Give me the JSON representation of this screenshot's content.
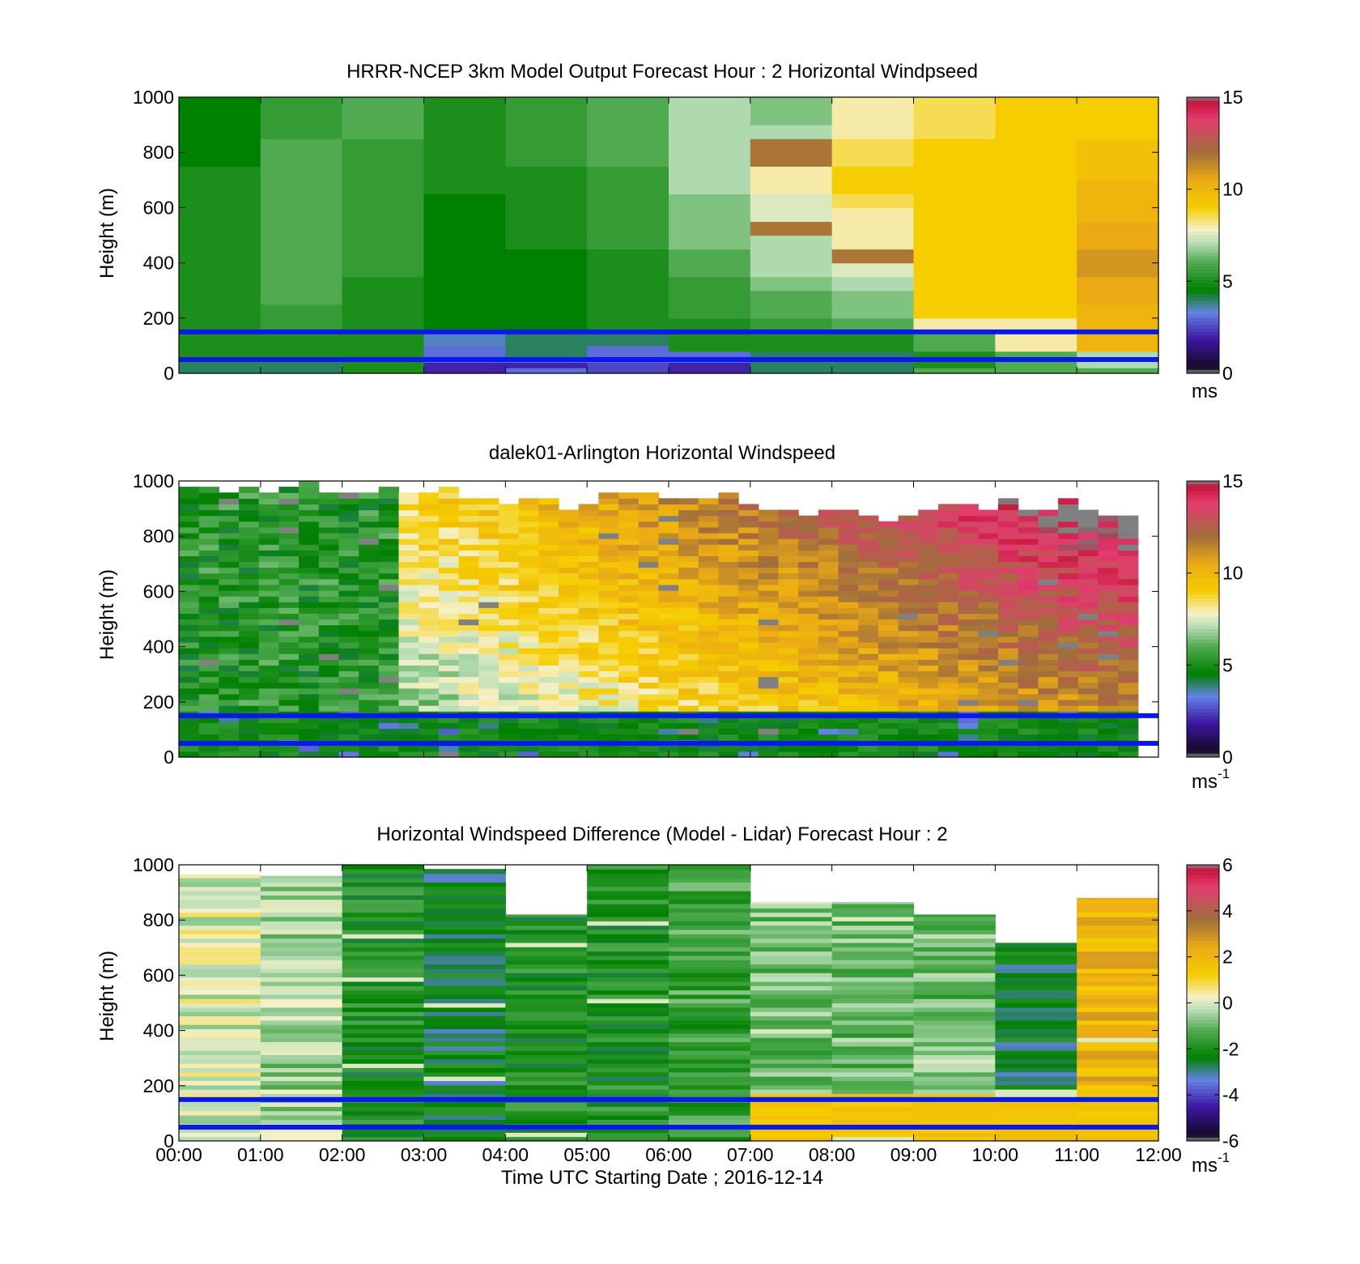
{
  "figure": {
    "xlabel": "Time UTC  Starting Date ; 2016-12-14",
    "x_tick_labels": [
      "00:00",
      "01:00",
      "02:00",
      "03:00",
      "04:00",
      "05:00",
      "06:00",
      "07:00",
      "08:00",
      "09:00",
      "10:00",
      "11:00",
      "12:00"
    ],
    "grid": false
  },
  "chart_data": [
    {
      "type": "heatmap",
      "title": "HRRR-NCEP 3km Model Output   Forecast Hour : 2 Horizontal Windpseed",
      "ylabel": "Height (m)",
      "ylim": [
        0,
        1000
      ],
      "yticks": [
        "0",
        "200",
        "400",
        "600",
        "800",
        "1000"
      ],
      "x": [
        "00:00",
        "01:00",
        "02:00",
        "03:00",
        "04:00",
        "05:00",
        "06:00",
        "07:00",
        "08:00",
        "09:00",
        "10:00",
        "11:00"
      ],
      "heights": [
        0,
        20,
        40,
        60,
        80,
        100,
        150,
        200,
        250,
        300,
        350,
        400,
        450,
        500,
        550,
        600,
        650,
        700,
        750,
        800,
        850,
        900,
        950
      ],
      "z": [
        [
          4,
          4,
          5,
          2,
          3,
          2.5,
          2,
          4,
          4,
          6,
          6,
          6
        ],
        [
          4,
          4,
          5,
          2,
          2,
          2.5,
          2,
          4,
          4,
          5,
          6,
          7
        ],
        [
          5,
          5,
          5,
          3,
          3,
          3,
          3,
          4,
          4,
          5,
          6,
          7
        ],
        [
          5,
          5,
          5,
          3,
          4,
          3,
          3,
          4,
          4,
          5,
          6,
          7
        ],
        [
          5,
          5,
          5,
          3,
          4,
          3,
          5,
          5,
          5,
          6,
          8,
          10
        ],
        [
          5,
          5,
          5,
          3.5,
          4,
          4,
          5,
          5,
          5,
          6,
          8,
          10
        ],
        [
          5,
          5.5,
          5,
          4.5,
          4.5,
          5,
          5,
          5.5,
          6,
          8,
          8,
          10
        ],
        [
          5,
          5.5,
          5,
          4.5,
          4.5,
          5,
          5.5,
          6,
          6.5,
          9,
          9,
          10
        ],
        [
          5,
          6,
          5,
          4.5,
          4.5,
          5,
          5.5,
          6,
          6.5,
          9,
          9,
          10.5
        ],
        [
          5,
          6,
          5,
          4.5,
          4.5,
          5,
          5.5,
          6.5,
          7,
          9,
          9,
          10.5
        ],
        [
          5,
          6,
          5.5,
          4.5,
          4.5,
          5,
          6,
          7,
          7.5,
          9,
          9,
          11
        ],
        [
          5,
          6,
          5.5,
          4.5,
          4.5,
          5,
          6,
          7,
          11.8,
          9,
          9,
          11
        ],
        [
          5,
          6,
          5.5,
          4.5,
          5,
          5.5,
          6.5,
          7,
          8,
          9,
          9,
          10.5
        ],
        [
          5,
          6,
          5.5,
          4.5,
          5,
          5.5,
          6.5,
          11.8,
          8,
          9,
          9,
          10.5
        ],
        [
          5,
          6,
          5.5,
          4.5,
          5,
          5.5,
          6.5,
          7.5,
          8,
          9,
          9,
          10
        ],
        [
          5,
          6,
          5.5,
          4.5,
          5,
          5.5,
          6.5,
          7.5,
          8.5,
          9,
          9,
          10
        ],
        [
          5,
          6,
          5.5,
          5,
          5,
          5.5,
          7,
          8,
          9,
          9,
          9,
          10
        ],
        [
          5,
          6,
          5.5,
          5,
          5,
          5.5,
          7,
          8,
          9,
          9,
          9,
          9.5
        ],
        [
          4.5,
          6,
          5.5,
          5,
          5.5,
          6,
          7,
          11.8,
          8.5,
          9,
          9,
          9.5
        ],
        [
          4.5,
          6,
          5.5,
          5,
          5.5,
          6,
          7,
          11.8,
          8.5,
          9,
          9,
          9.5
        ],
        [
          4.5,
          5.5,
          6,
          5,
          5.5,
          6,
          7,
          7,
          8,
          8.5,
          9,
          9
        ],
        [
          4.5,
          5.5,
          6,
          5,
          5.5,
          6,
          7,
          6.5,
          8,
          8.5,
          9,
          9
        ],
        [
          4.5,
          5.5,
          6,
          5,
          5.5,
          6,
          7,
          6.5,
          8,
          8.5,
          9,
          9
        ]
      ],
      "overlay_lines_m": [
        150,
        50
      ],
      "colorbar": {
        "range": [
          0,
          15
        ],
        "ticks": [
          "0",
          "5",
          "10",
          "15"
        ],
        "unit": "ms",
        "unit_exponent": ""
      }
    },
    {
      "type": "heatmap",
      "title": "dalek01-Arlington  Horizontal Windspeed",
      "ylabel": "Height (m)",
      "ylim": [
        0,
        1000
      ],
      "yticks": [
        "0",
        "200",
        "400",
        "600",
        "800",
        "1000"
      ],
      "columns": 48,
      "time_range_hours": [
        0,
        11.75
      ],
      "top_height_m_by_hour": [
        990,
        990,
        980,
        970,
        950,
        960,
        960,
        930,
        900,
        920,
        930,
        900
      ],
      "overlay_lines_m": [
        150,
        50
      ],
      "colorbar": {
        "range": [
          0,
          15
        ],
        "ticks": [
          "0",
          "5",
          "10",
          "15"
        ],
        "unit": "ms",
        "unit_exponent": "-1"
      }
    },
    {
      "type": "heatmap",
      "title": "Horizontal Windspeed Difference (Model - Lidar) Forecast Hour : 2",
      "ylabel": "Height (m)",
      "ylim": [
        0,
        1000
      ],
      "yticks": [
        "0",
        "200",
        "400",
        "600",
        "800",
        "1000"
      ],
      "x": [
        "00:00",
        "01:00",
        "02:00",
        "03:00",
        "04:00",
        "05:00",
        "06:00",
        "07:00",
        "08:00",
        "09:00",
        "10:00",
        "11:00"
      ],
      "column_top_m": [
        965,
        960,
        1000,
        985,
        820,
        1000,
        1000,
        865,
        865,
        820,
        720,
        880
      ],
      "column_mean_diff": [
        0,
        -0.5,
        -2,
        -2.5,
        -2,
        -2,
        -1.5,
        -1,
        -1,
        -1,
        -2.5,
        2
      ],
      "overlay_lines_m": [
        150,
        50
      ],
      "colorbar": {
        "range": [
          -6,
          6
        ],
        "ticks": [
          "-6",
          "-4",
          "-2",
          "0",
          "2",
          "4",
          "6"
        ],
        "unit": "ms",
        "unit_exponent": "-1"
      }
    }
  ]
}
